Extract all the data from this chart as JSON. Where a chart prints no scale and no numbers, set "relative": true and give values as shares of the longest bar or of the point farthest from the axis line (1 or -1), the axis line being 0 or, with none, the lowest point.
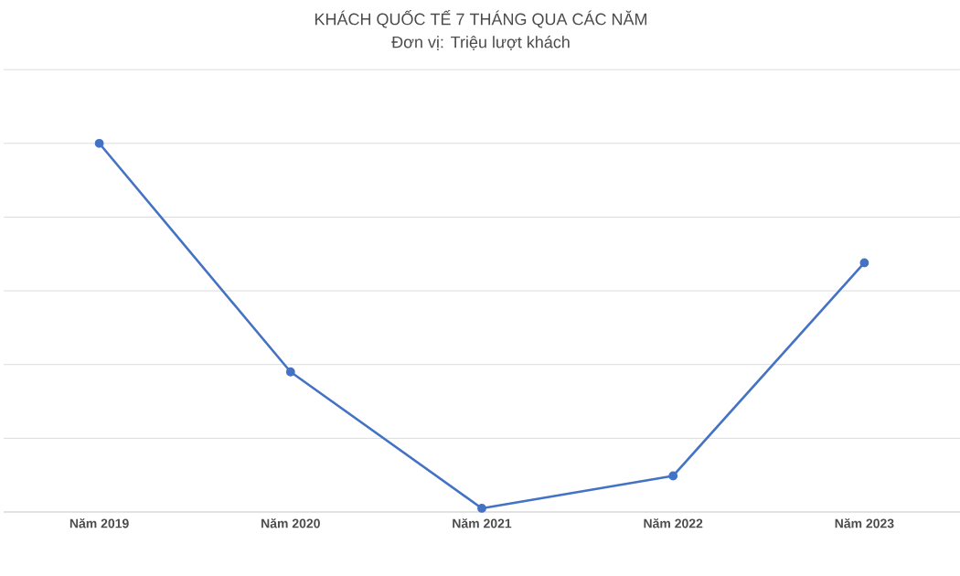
{
  "chart_data": {
    "type": "line",
    "title": "KHÁCH QUỐC TẾ 7 THÁNG QUA CÁC NĂM",
    "subtitle": "Đơn vị: Triệu lượt khách",
    "categories": [
      "Năm 2019",
      "Năm  2020",
      "Năm 2021",
      "Năm 2022",
      "Năm 2023"
    ],
    "series": [
      {
        "color": "#4472c4",
        "values": [
          1,
          0.38,
          0.01,
          0.098,
          0.676
        ]
      }
    ],
    "relative": true,
    "grid": "y",
    "marker": "circle",
    "line_style": "solid"
  }
}
